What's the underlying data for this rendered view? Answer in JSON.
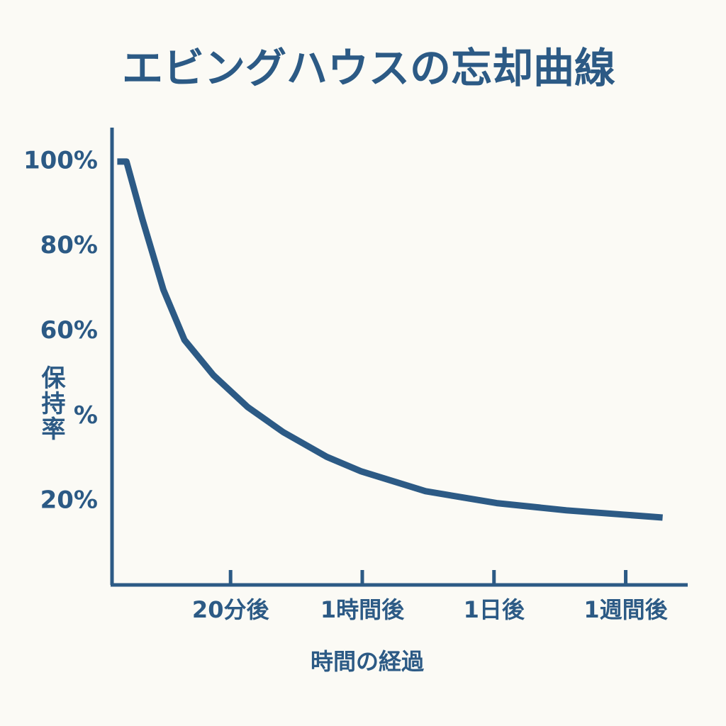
{
  "chart_data": {
    "type": "line",
    "title": "エビングハウスの忘却曲線",
    "xlabel": "時間の経過",
    "ylabel": "保持率",
    "color": "#2c5a85",
    "x": [
      0.14,
      0.21,
      0.33,
      0.49,
      0.65,
      0.87,
      1.13,
      1.4,
      1.73,
      1.99,
      2.48,
      3.02,
      3.55,
      3.98,
      4.28
    ],
    "values": [
      100,
      100,
      86.5,
      69.8,
      58,
      49.7,
      42.2,
      36.3,
      30.5,
      27.1,
      22.4,
      19.6,
      17.9,
      16.9,
      16.2
    ],
    "xlim": [
      0.1,
      4.46
    ],
    "xticks": [
      {
        "value": 1,
        "label": "20分後"
      },
      {
        "value": 2,
        "label": "1時間後"
      },
      {
        "value": 3,
        "label": "1日後"
      },
      {
        "value": 4,
        "label": "1週間後"
      }
    ],
    "ylim": [
      0,
      108
    ],
    "yticks": [
      {
        "value": 20,
        "label": "20%"
      },
      {
        "value": 40,
        "label": "%"
      },
      {
        "value": 60,
        "label": "60%"
      },
      {
        "value": 80,
        "label": "80%"
      },
      {
        "value": 100,
        "label": "100%"
      }
    ],
    "grid": false
  }
}
